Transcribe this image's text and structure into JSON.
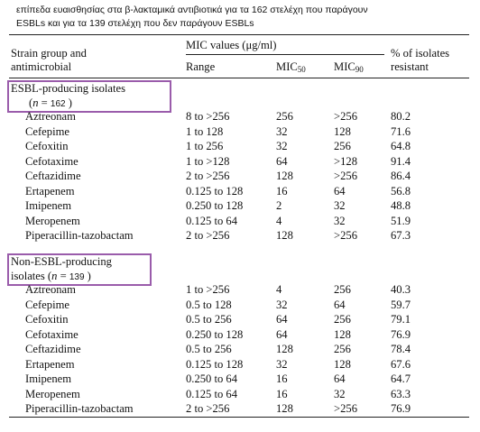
{
  "caption": {
    "line1": "επίπεδα ευαισθησίας στα β-λακταμικά αντιβιοτικά για τα  162  στελέχη που παράγουν",
    "line2": "ESBLs και για τα 139  στελέχη που δεν παράγουν ESBLs"
  },
  "header": {
    "strain_line1": "Strain group and",
    "strain_line2": "antimicrobial",
    "mic_values": "MIC values (μg/ml)",
    "range": "Range",
    "mic50_base": "MIC",
    "mic50_sub": "50",
    "mic90_base": "MIC",
    "mic90_sub": "90",
    "resist_line1": "% of isolates",
    "resist_line2": "resistant"
  },
  "groups": [
    {
      "label_line1": "ESBL-producing isolates",
      "label_line2_pre": "(",
      "label_n": "n",
      "label_eq": " = ",
      "label_count": "162",
      "label_line2_post": " )",
      "rows": [
        {
          "drug": "Aztreonam",
          "range": "8 to >256",
          "mic50": "256",
          "mic90": ">256",
          "resist": "80.2"
        },
        {
          "drug": "Cefepime",
          "range": "1 to 128",
          "mic50": "32",
          "mic90": "128",
          "resist": "71.6"
        },
        {
          "drug": "Cefoxitin",
          "range": "1 to 256",
          "mic50": "32",
          "mic90": "256",
          "resist": "64.8"
        },
        {
          "drug": "Cefotaxime",
          "range": "1 to >128",
          "mic50": "64",
          "mic90": ">128",
          "resist": "91.4"
        },
        {
          "drug": "Ceftazidime",
          "range": "2 to >256",
          "mic50": "128",
          "mic90": ">256",
          "resist": "86.4"
        },
        {
          "drug": "Ertapenem",
          "range": "0.125 to 128",
          "mic50": "16",
          "mic90": "64",
          "resist": "56.8"
        },
        {
          "drug": "Imipenem",
          "range": "0.250 to 128",
          "mic50": "2",
          "mic90": "32",
          "resist": "48.8"
        },
        {
          "drug": "Meropenem",
          "range": "0.125 to 64",
          "mic50": "4",
          "mic90": "32",
          "resist": "51.9"
        },
        {
          "drug": "Piperacillin-tazobactam",
          "range": "2 to >256",
          "mic50": "128",
          "mic90": ">256",
          "resist": "67.3"
        }
      ]
    },
    {
      "label_line1": "Non-ESBL-producing",
      "label_line2_pre": "isolates (",
      "label_n": "n",
      "label_eq": " = ",
      "label_count": "139",
      "label_line2_post": " )",
      "rows": [
        {
          "drug": "Aztreonam",
          "range": "1 to >256",
          "mic50": "4",
          "mic90": "256",
          "resist": "40.3"
        },
        {
          "drug": "Cefepime",
          "range": "0.5 to 128",
          "mic50": "32",
          "mic90": "64",
          "resist": "59.7"
        },
        {
          "drug": "Cefoxitin",
          "range": "0.5 to 256",
          "mic50": "64",
          "mic90": "256",
          "resist": "79.1"
        },
        {
          "drug": "Cefotaxime",
          "range": "0.250 to 128",
          "mic50": "64",
          "mic90": "128",
          "resist": "76.9"
        },
        {
          "drug": "Ceftazidime",
          "range": "0.5 to 256",
          "mic50": "128",
          "mic90": "256",
          "resist": "78.4"
        },
        {
          "drug": "Ertapenem",
          "range": "0.125 to 128",
          "mic50": "32",
          "mic90": "128",
          "resist": "67.6"
        },
        {
          "drug": "Imipenem",
          "range": "0.250 to 64",
          "mic50": "16",
          "mic90": "64",
          "resist": "64.7"
        },
        {
          "drug": "Meropenem",
          "range": "0.125 to 64",
          "mic50": "16",
          "mic90": "32",
          "resist": "63.3"
        },
        {
          "drug": "Piperacillin-tazobactam",
          "range": "2 to >256",
          "mic50": "128",
          "mic90": ">256",
          "resist": "76.9"
        }
      ]
    }
  ],
  "colors": {
    "highlight_box": "#9a5cab"
  }
}
